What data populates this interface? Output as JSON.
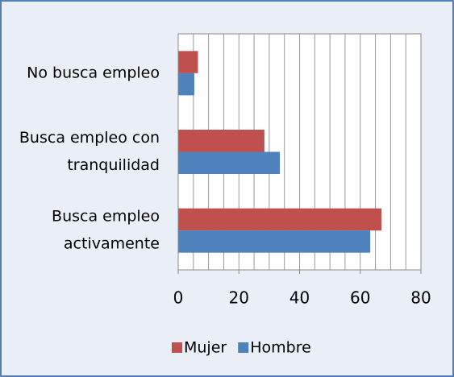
{
  "chart_data": {
    "type": "barh",
    "categories": [
      [
        "No busca empleo"
      ],
      [
        "Busca empleo con",
        "tranquilidad"
      ],
      [
        "Busca empleo",
        "activamente"
      ]
    ],
    "series": [
      {
        "name": "Mujer",
        "color": "#c0504d",
        "values": [
          6.5,
          28.4,
          67
        ]
      },
      {
        "name": "Hombre",
        "color": "#4f81bd",
        "values": [
          5.3,
          33.5,
          63.3
        ]
      }
    ],
    "xlim": [
      0,
      80
    ],
    "xticks": [
      0,
      20,
      40,
      60,
      80
    ],
    "x_minor_grid": [
      5,
      10,
      15,
      20,
      25,
      30,
      35,
      40,
      45,
      50,
      55,
      60,
      65,
      70,
      75
    ],
    "grid": true,
    "legend": "bottom"
  }
}
